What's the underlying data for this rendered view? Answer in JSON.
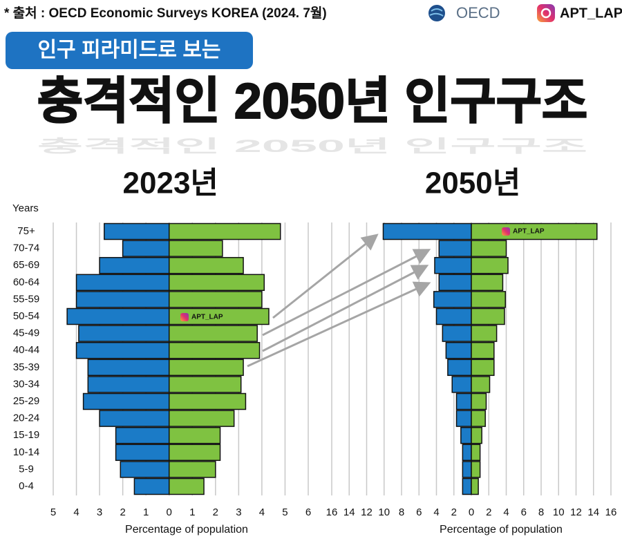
{
  "header": {
    "source": "* 출처 : OECD Economic Surveys KOREA (2024. 7월)",
    "logo": "OECD",
    "account": "APT_LAP"
  },
  "badge": "인구 피라미드로 보는",
  "headline": "충격적인 2050년 인구구조",
  "chart_data": [
    {
      "type": "pyramid",
      "title": "2023년",
      "ylabel": "Years",
      "xlabel": "Percentage of population",
      "watermark": "APT_LAP",
      "categories": [
        "75+",
        "70-74",
        "65-69",
        "60-64",
        "55-59",
        "50-54",
        "45-49",
        "40-44",
        "35-39",
        "30-34",
        "25-29",
        "20-24",
        "15-19",
        "10-14",
        "5-9",
        "0-4"
      ],
      "series": [
        {
          "color": "#1b7bc7",
          "values": [
            -2.8,
            -2.0,
            -3.0,
            -4.0,
            -4.0,
            -4.4,
            -3.9,
            -4.0,
            -3.5,
            -3.5,
            -3.7,
            -3.0,
            -2.3,
            -2.3,
            -2.1,
            -1.5
          ]
        },
        {
          "color": "#7fc241",
          "values": [
            4.8,
            2.3,
            3.2,
            4.1,
            4.0,
            4.3,
            3.8,
            3.9,
            3.2,
            3.1,
            3.3,
            2.8,
            2.2,
            2.2,
            2.0,
            1.5
          ]
        }
      ],
      "xlim": [
        -5,
        6
      ],
      "xticks": [
        {
          "value": -5,
          "label": "5"
        },
        {
          "value": -4,
          "label": "4"
        },
        {
          "value": -3,
          "label": "3"
        },
        {
          "value": -2,
          "label": "2"
        },
        {
          "value": -1,
          "label": "1"
        },
        0,
        1,
        2,
        3,
        4,
        5,
        6
      ],
      "grid": true
    },
    {
      "type": "pyramid",
      "title": "2050년",
      "xlabel": "Percentage of population",
      "watermark": "APT_LAP",
      "series": [
        {
          "color": "#1b7bc7",
          "values": [
            -10.1,
            -3.7,
            -4.2,
            -3.7,
            -4.3,
            -4.0,
            -3.3,
            -2.9,
            -2.7,
            -2.2,
            -1.7,
            -1.7,
            -1.2,
            -1.0,
            -1.0,
            -1.0
          ]
        },
        {
          "color": "#7fc241",
          "values": [
            14.4,
            4.0,
            4.2,
            3.6,
            3.9,
            3.8,
            2.9,
            2.6,
            2.6,
            2.1,
            1.7,
            1.6,
            1.2,
            1.0,
            1.0,
            0.8
          ]
        }
      ],
      "xlim": [
        -16,
        16
      ],
      "xticks": [
        {
          "value": -16,
          "label": "16"
        },
        {
          "value": -14,
          "label": "14"
        },
        {
          "value": -12,
          "label": "12"
        },
        {
          "value": -10,
          "label": "10"
        },
        {
          "value": -8,
          "label": "8"
        },
        {
          "value": -6,
          "label": "6"
        },
        {
          "value": -4,
          "label": "4"
        },
        {
          "value": -2,
          "label": "2"
        },
        0,
        2,
        4,
        6,
        8,
        10,
        12,
        14,
        16
      ],
      "grid": true
    }
  ]
}
